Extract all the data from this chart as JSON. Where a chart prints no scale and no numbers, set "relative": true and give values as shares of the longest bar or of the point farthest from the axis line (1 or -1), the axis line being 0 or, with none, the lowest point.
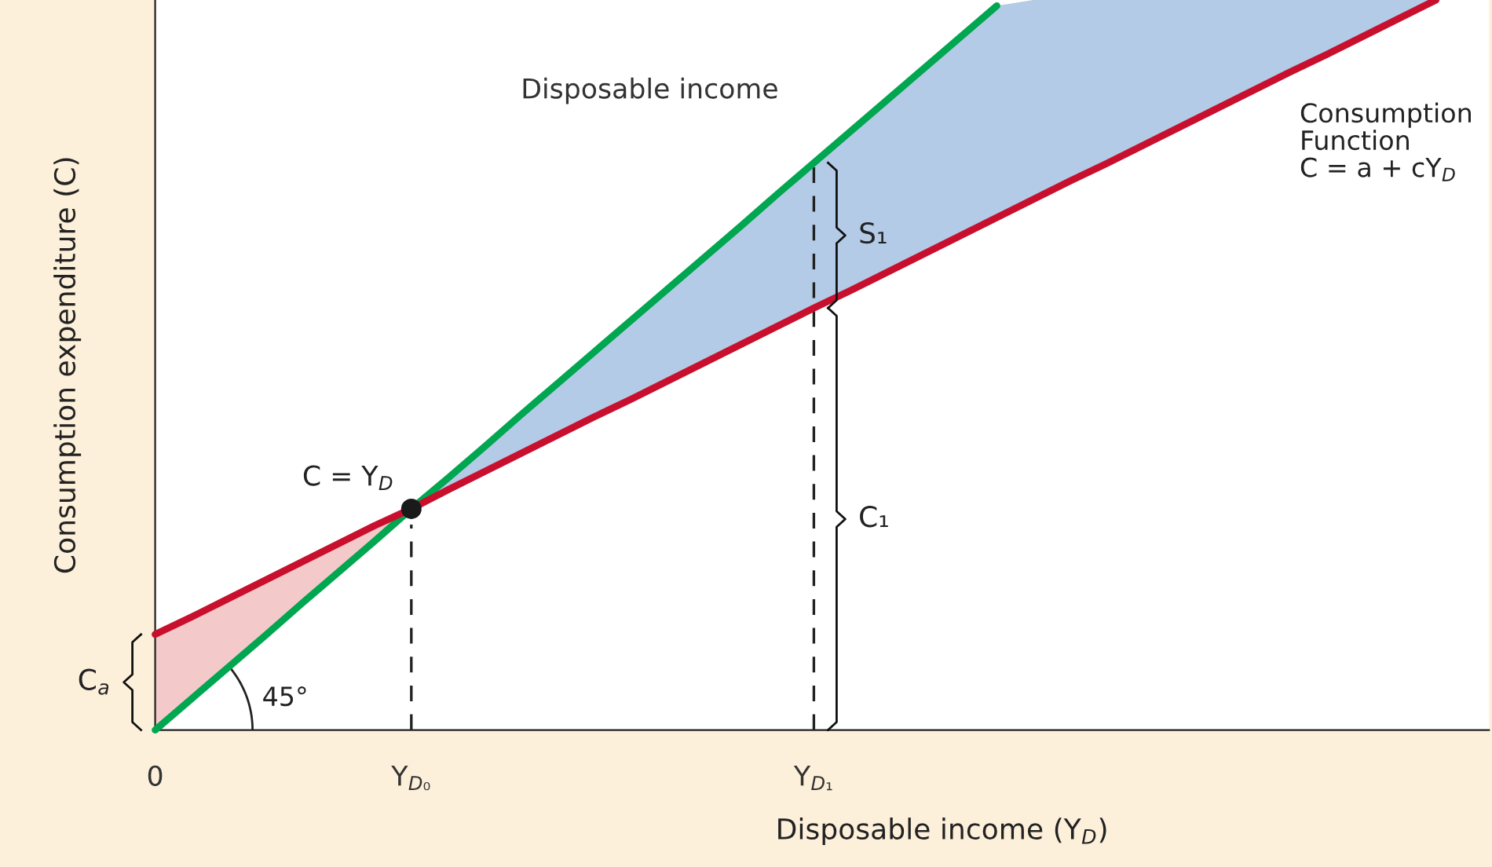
{
  "chart_data": {
    "type": "line",
    "relative": true,
    "xlabel": "Disposable income (Y$_{D}$)",
    "ylabel": "Consumption expenditure (C)",
    "categories": [
      "0",
      null,
      null,
      null,
      null,
      null,
      null,
      "Y$_{D₀}$",
      null,
      null,
      null,
      null,
      null,
      null,
      null,
      null,
      null,
      null,
      "Y$_{D₁}$",
      null,
      null,
      null,
      null,
      null,
      null,
      null,
      null,
      null,
      null,
      null,
      null,
      null,
      null,
      null,
      null,
      null,
      null
    ],
    "series": [
      {
        "type": "area",
        "color": "#f4c9c9",
        "values": [
          0.131,
          0.155,
          0.18,
          0.205,
          0.23,
          0.255,
          0.28,
          0.303,
          null,
          null,
          null,
          null,
          null,
          null,
          null,
          null,
          null,
          null,
          null,
          null,
          null,
          null,
          null,
          null,
          null,
          null,
          null,
          null,
          null,
          null,
          null,
          null,
          null,
          null,
          null,
          null,
          null
        ]
      },
      {
        "type": "area",
        "color": "#b3cbe6",
        "values": [
          null,
          null,
          null,
          null,
          null,
          null,
          null,
          0.303,
          0.345,
          0.388,
          0.432,
          0.475,
          0.518,
          0.561,
          0.604,
          0.647,
          0.69,
          0.734,
          0.777,
          0.82,
          0.863,
          0.906,
          0.949,
          0.992,
          1,
          1,
          1,
          1,
          1,
          1,
          1,
          1,
          1,
          1,
          1,
          1,
          null
        ]
      },
      {
        "name": "Disposable income",
        "color": "#00a650",
        "values": [
          0,
          0.043,
          0.086,
          0.129,
          0.173,
          0.216,
          0.259,
          0.303,
          0.345,
          0.388,
          0.432,
          0.475,
          0.518,
          0.561,
          0.604,
          0.647,
          0.69,
          0.734,
          0.777,
          0.82,
          0.863,
          0.906,
          0.949,
          0.992,
          null,
          null,
          null,
          null,
          null,
          null,
          null,
          null,
          null,
          null,
          null,
          null,
          null
        ]
      },
      {
        "name": "Consumption\nFunction\nC = a + cY$_{D}$",
        "color": "#c8102e",
        "values": [
          0.131,
          0.155,
          0.18,
          0.205,
          0.23,
          0.255,
          0.28,
          0.303,
          0.329,
          0.354,
          0.379,
          0.404,
          0.429,
          0.453,
          0.478,
          0.503,
          0.528,
          0.553,
          0.578,
          0.602,
          0.627,
          0.652,
          0.677,
          0.702,
          0.727,
          0.752,
          0.776,
          0.801,
          0.826,
          0.851,
          0.876,
          0.901,
          0.925,
          0.95,
          0.975,
          1.0,
          null
        ]
      },
      {
        "type": "scatter",
        "color": "#1a1a1a",
        "values": [
          null,
          null,
          null,
          null,
          null,
          null,
          null,
          0.303,
          null,
          null,
          null,
          null,
          null,
          null,
          null,
          null,
          null,
          null,
          null,
          null,
          null,
          null,
          null,
          null,
          null,
          null,
          null,
          null,
          null,
          null,
          null,
          null,
          null,
          null,
          null,
          null,
          null
        ]
      }
    ],
    "ref_lines": [
      {
        "axis": "x",
        "value": "Y$_{D₀}$",
        "line_style": "dashed",
        "color": "#222222"
      },
      {
        "axis": "x",
        "value": "Y$_{D₁}$",
        "line_style": "dashed",
        "color": "#222222"
      }
    ],
    "annotations": [
      "S₁",
      "C₁",
      "C$_{a}$",
      "C = Y$_{D}$",
      "45°"
    ],
    "grid": false,
    "legend": false
  }
}
